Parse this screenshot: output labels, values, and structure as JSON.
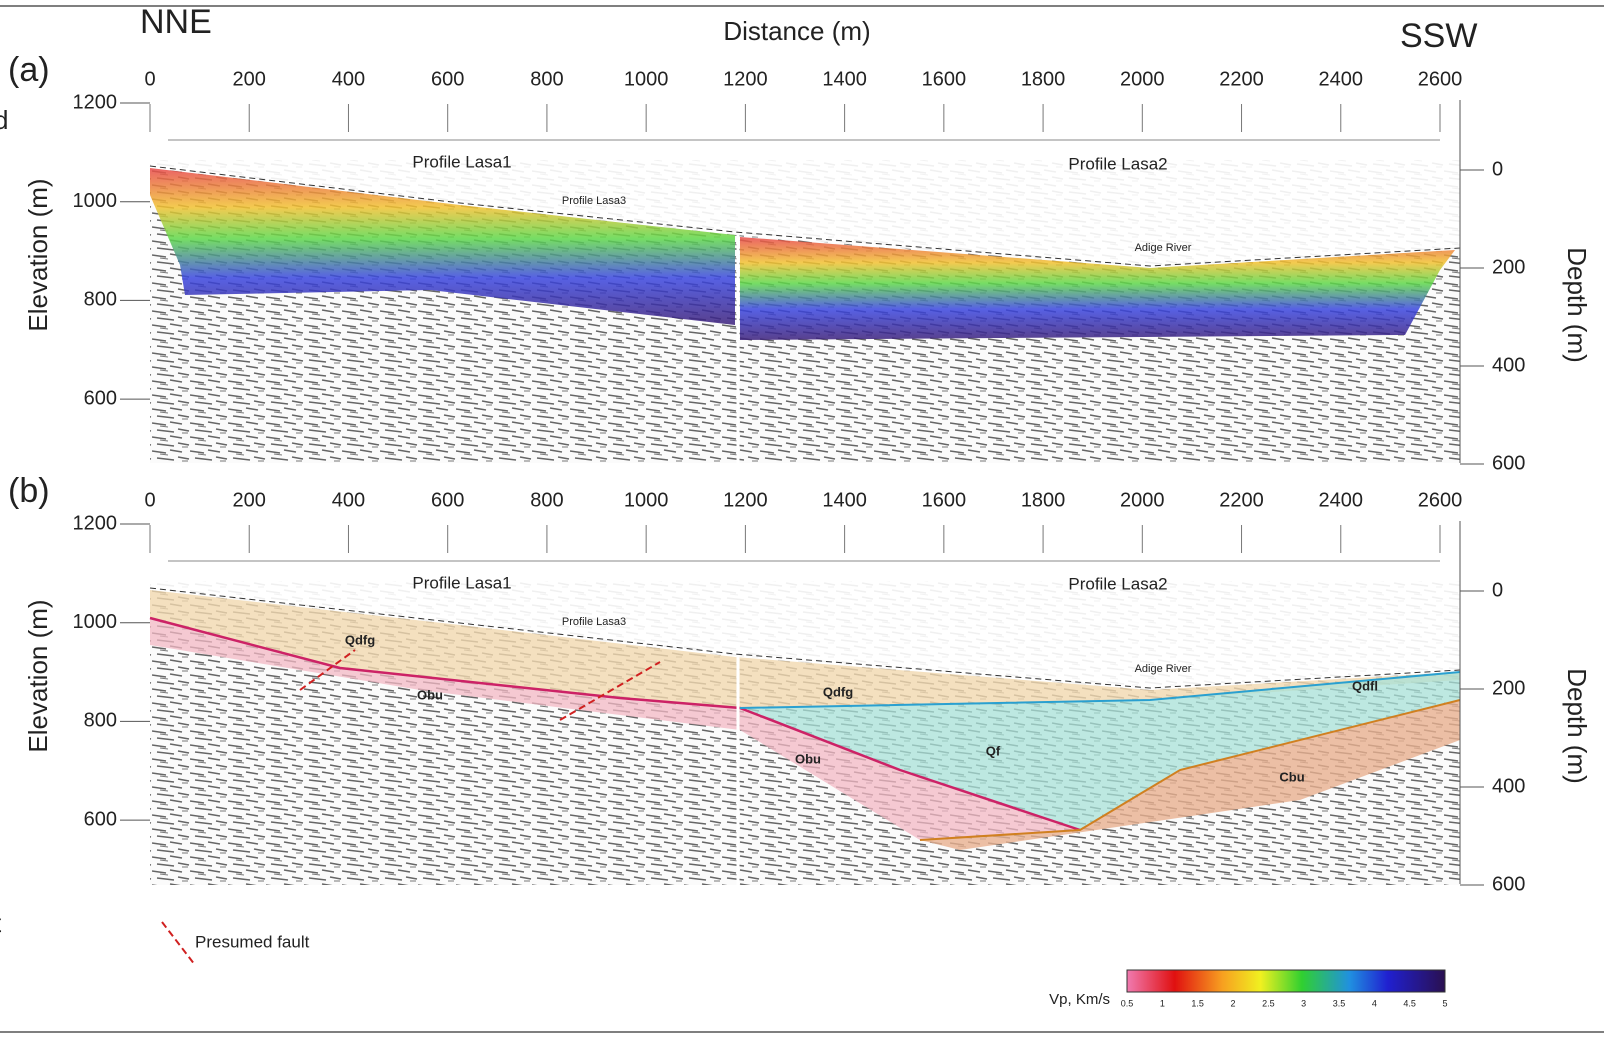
{
  "header": {
    "left": "NNE",
    "center": "Distance (m)",
    "right": "SSW"
  },
  "panels": [
    {
      "label": "(a)",
      "x_ticks": [
        0,
        200,
        400,
        600,
        800,
        1000,
        1200,
        1400,
        1600,
        1800,
        2000,
        2200,
        2400,
        2600
      ],
      "y_axis_title": "Elevation (m)",
      "y_ticks": [
        1200,
        1000,
        800,
        600
      ],
      "depth_axis_title": "Depth (m)",
      "depth_ticks": [
        0,
        200,
        400,
        600
      ],
      "annotations": [
        "Profile Lasa1",
        "Profile Lasa2",
        "Profile Lasa3",
        "Adige River"
      ]
    },
    {
      "label": "(b)",
      "x_ticks": [
        0,
        200,
        400,
        600,
        800,
        1000,
        1200,
        1400,
        1600,
        1800,
        2000,
        2200,
        2400,
        2600
      ],
      "y_axis_title": "Elevation (m)",
      "y_ticks": [
        1200,
        1000,
        800,
        600
      ],
      "depth_axis_title": "Depth (m)",
      "depth_ticks": [
        0,
        200,
        400,
        600
      ],
      "annotations": [
        "Profile Lasa1",
        "Profile Lasa2",
        "Profile Lasa3",
        "Adige River",
        "Qdfg",
        "Obu",
        "Qdfg",
        "Obu",
        "Qf",
        "Cbu",
        "Qdfl"
      ]
    }
  ],
  "legend": {
    "fault": "Presumed fault"
  },
  "colorbar": {
    "title": "Vp, Km/s",
    "ticks": [
      0.5,
      1,
      1.5,
      2,
      2.5,
      3,
      3.5,
      4,
      4.5,
      5
    ]
  },
  "cropped_text": [
    "d",
    "t"
  ]
}
